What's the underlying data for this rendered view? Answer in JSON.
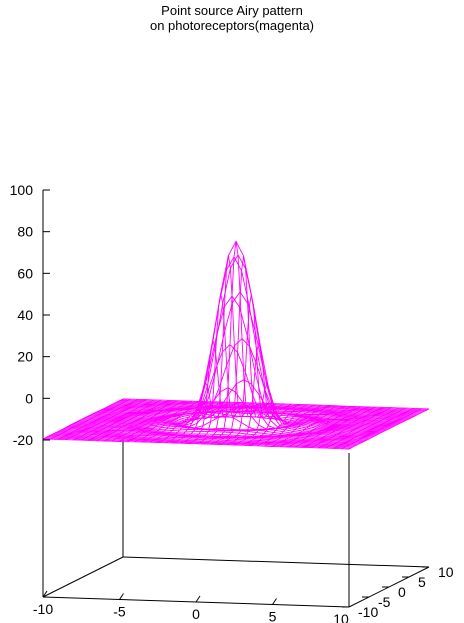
{
  "chart_data": {
    "type": "surface",
    "title_lines": [
      "Point source Airy pattern",
      "on photoreceptors(magenta)"
    ],
    "x": {
      "range": [
        -10,
        10
      ],
      "ticks": [
        -10,
        -5,
        0,
        5
      ],
      "tick_labels": [
        "-10",
        "-5",
        "0",
        "5"
      ]
    },
    "y": {
      "range": [
        -10,
        10
      ],
      "ticks": [
        -10,
        -5,
        0,
        5,
        10
      ],
      "tick_labels": [
        "-10",
        "-5",
        "0",
        "5",
        "10"
      ]
    },
    "z": {
      "range": [
        -20,
        100
      ],
      "ticks": [
        -20,
        0,
        20,
        40,
        60,
        80,
        100
      ],
      "tick_labels": [
        "-20",
        "0",
        "20",
        "40",
        "60",
        "80",
        "100"
      ]
    },
    "surface": {
      "function": "Airy intensity pattern",
      "peak_z": 87,
      "peak_at": [
        0,
        0
      ],
      "base_z": 0,
      "color": "#ff00ff"
    },
    "grid": false,
    "legend": "none"
  }
}
